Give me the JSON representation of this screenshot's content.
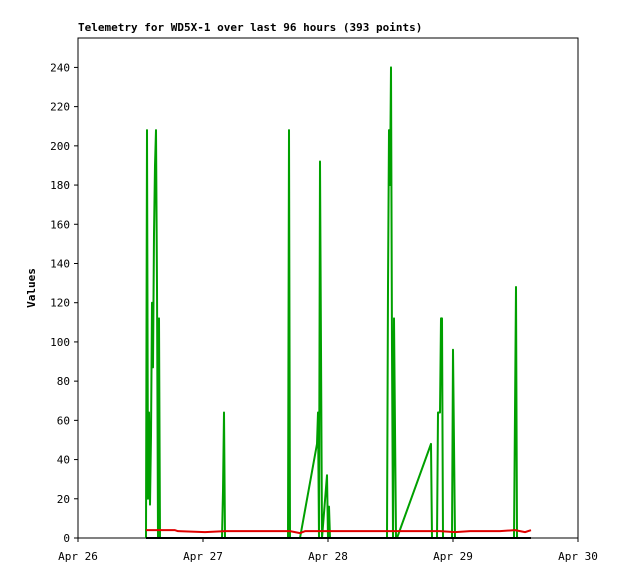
{
  "chart_data": {
    "type": "line",
    "title": "Telemetry for WD5X-1 over last 96 hours (393 points)",
    "ylabel": "Values",
    "xlim": [
      26,
      30
    ],
    "xticks": [
      {
        "value": 26,
        "label": "Apr 26"
      },
      {
        "value": 27,
        "label": "Apr 27"
      },
      {
        "value": 28,
        "label": "Apr 28"
      },
      {
        "value": 29,
        "label": "Apr 29"
      },
      {
        "value": 30,
        "label": "Apr 30"
      }
    ],
    "ylim": [
      0,
      255
    ],
    "yticks": [
      0,
      20,
      40,
      60,
      80,
      100,
      120,
      140,
      160,
      180,
      200,
      220,
      240
    ],
    "series": [
      {
        "color": "#00a000",
        "x": [
          26.544,
          26.552,
          26.56,
          26.568,
          26.576,
          26.584,
          26.592,
          26.6,
          26.608,
          26.616,
          26.624,
          26.632,
          26.64,
          26.648,
          26.656,
          27.152,
          27.16,
          27.168,
          27.176,
          27.68,
          27.688,
          27.696,
          27.776,
          27.912,
          27.92,
          27.928,
          27.936,
          27.944,
          27.952,
          27.992,
          28.0,
          28.008,
          28.016,
          28.472,
          28.48,
          28.488,
          28.496,
          28.504,
          28.512,
          28.52,
          28.528,
          28.536,
          28.544,
          28.552,
          28.824,
          28.832,
          28.872,
          28.88,
          28.896,
          28.904,
          28.912,
          28.92,
          28.992,
          29.0,
          29.008,
          29.016,
          29.488,
          29.496,
          29.504,
          29.512
        ],
        "values": [
          0,
          208,
          20,
          64,
          17,
          52,
          120,
          87,
          155,
          190,
          208,
          128,
          0,
          112,
          0,
          0,
          24,
          64,
          0,
          0,
          208,
          0,
          0,
          48,
          64,
          0,
          192,
          96,
          0,
          32,
          0,
          16,
          0,
          0,
          128,
          208,
          180,
          240,
          96,
          0,
          112,
          56,
          0,
          0,
          48,
          0,
          0,
          64,
          64,
          112,
          112,
          0,
          0,
          96,
          48,
          0,
          0,
          64,
          128,
          0
        ]
      },
      {
        "color": "#e00000",
        "x": [
          26.544,
          26.776,
          26.8,
          27.016,
          27.176,
          27.696,
          27.776,
          27.816,
          28.496,
          28.896,
          29.016,
          29.136,
          29.376,
          29.496,
          29.576,
          29.624
        ],
        "values": [
          4,
          4,
          3.5,
          3,
          3.5,
          3.5,
          2.5,
          3.5,
          3.5,
          3.5,
          3,
          3.5,
          3.5,
          4,
          3,
          4
        ]
      },
      {
        "color": "#000000",
        "x": [
          26.544,
          29.624
        ],
        "values": [
          0,
          0
        ]
      }
    ]
  }
}
